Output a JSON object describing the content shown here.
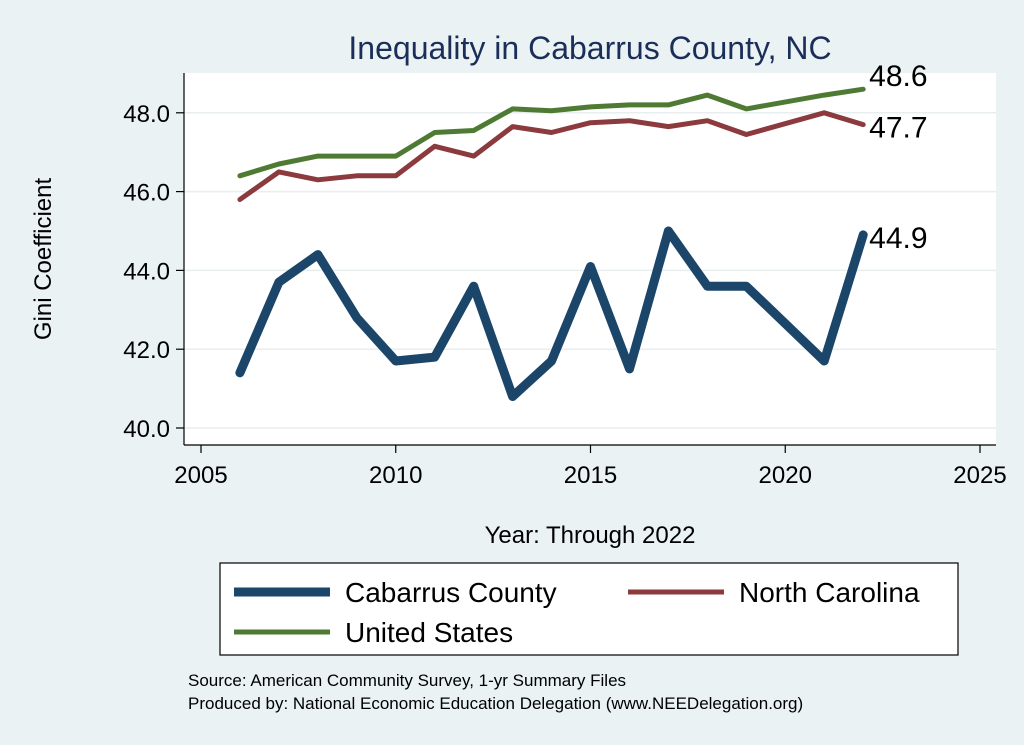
{
  "chart_data": {
    "type": "line",
    "title": "Inequality in Cabarrus County, NC",
    "xlabel": "Year: Through 2022",
    "ylabel": "Gini Coefficient",
    "xlim": [
      2005,
      2025
    ],
    "ylim": [
      40,
      49
    ],
    "x_ticks": [
      2005,
      2010,
      2015,
      2020,
      2025
    ],
    "x_tick_labels": [
      "2005",
      "2010",
      "2015",
      "2020",
      "2025"
    ],
    "y_ticks": [
      40,
      42,
      44,
      46,
      48
    ],
    "y_tick_labels": [
      "40.0",
      "42.0",
      "44.0",
      "46.0",
      "48.0"
    ],
    "grid": true,
    "series": [
      {
        "name": "Cabarrus County",
        "color": "#1b4669",
        "x": [
          2006,
          2007,
          2008,
          2009,
          2010,
          2011,
          2012,
          2013,
          2014,
          2015,
          2016,
          2017,
          2018,
          2019,
          2021,
          2022
        ],
        "values": [
          41.4,
          43.7,
          44.4,
          42.8,
          41.7,
          41.8,
          43.6,
          40.8,
          41.7,
          44.1,
          41.5,
          45.0,
          43.6,
          43.6,
          41.7,
          44.9
        ],
        "end_label": "44.9"
      },
      {
        "name": "North Carolina",
        "color": "#8b3a3e",
        "x": [
          2006,
          2007,
          2008,
          2009,
          2010,
          2011,
          2012,
          2013,
          2014,
          2015,
          2016,
          2017,
          2018,
          2019,
          2021,
          2022
        ],
        "values": [
          45.8,
          46.5,
          46.3,
          46.4,
          46.4,
          47.15,
          46.9,
          47.65,
          47.5,
          47.75,
          47.8,
          47.65,
          47.8,
          47.45,
          48.0,
          47.7
        ],
        "end_label": "47.7"
      },
      {
        "name": "United States",
        "color": "#4e7a33",
        "x": [
          2006,
          2007,
          2008,
          2009,
          2010,
          2011,
          2012,
          2013,
          2014,
          2015,
          2016,
          2017,
          2018,
          2019,
          2021,
          2022
        ],
        "values": [
          46.4,
          46.7,
          46.9,
          46.9,
          46.9,
          47.5,
          47.55,
          48.1,
          48.05,
          48.15,
          48.2,
          48.2,
          48.45,
          48.1,
          48.45,
          48.6
        ],
        "end_label": "48.6"
      }
    ],
    "legend_position": "bottom"
  },
  "footer": {
    "source": "Source: American Community Survey, 1-yr Summary Files",
    "produced_by": "Produced by: National Economic Education Delegation (www.NEEDelegation.org)"
  }
}
